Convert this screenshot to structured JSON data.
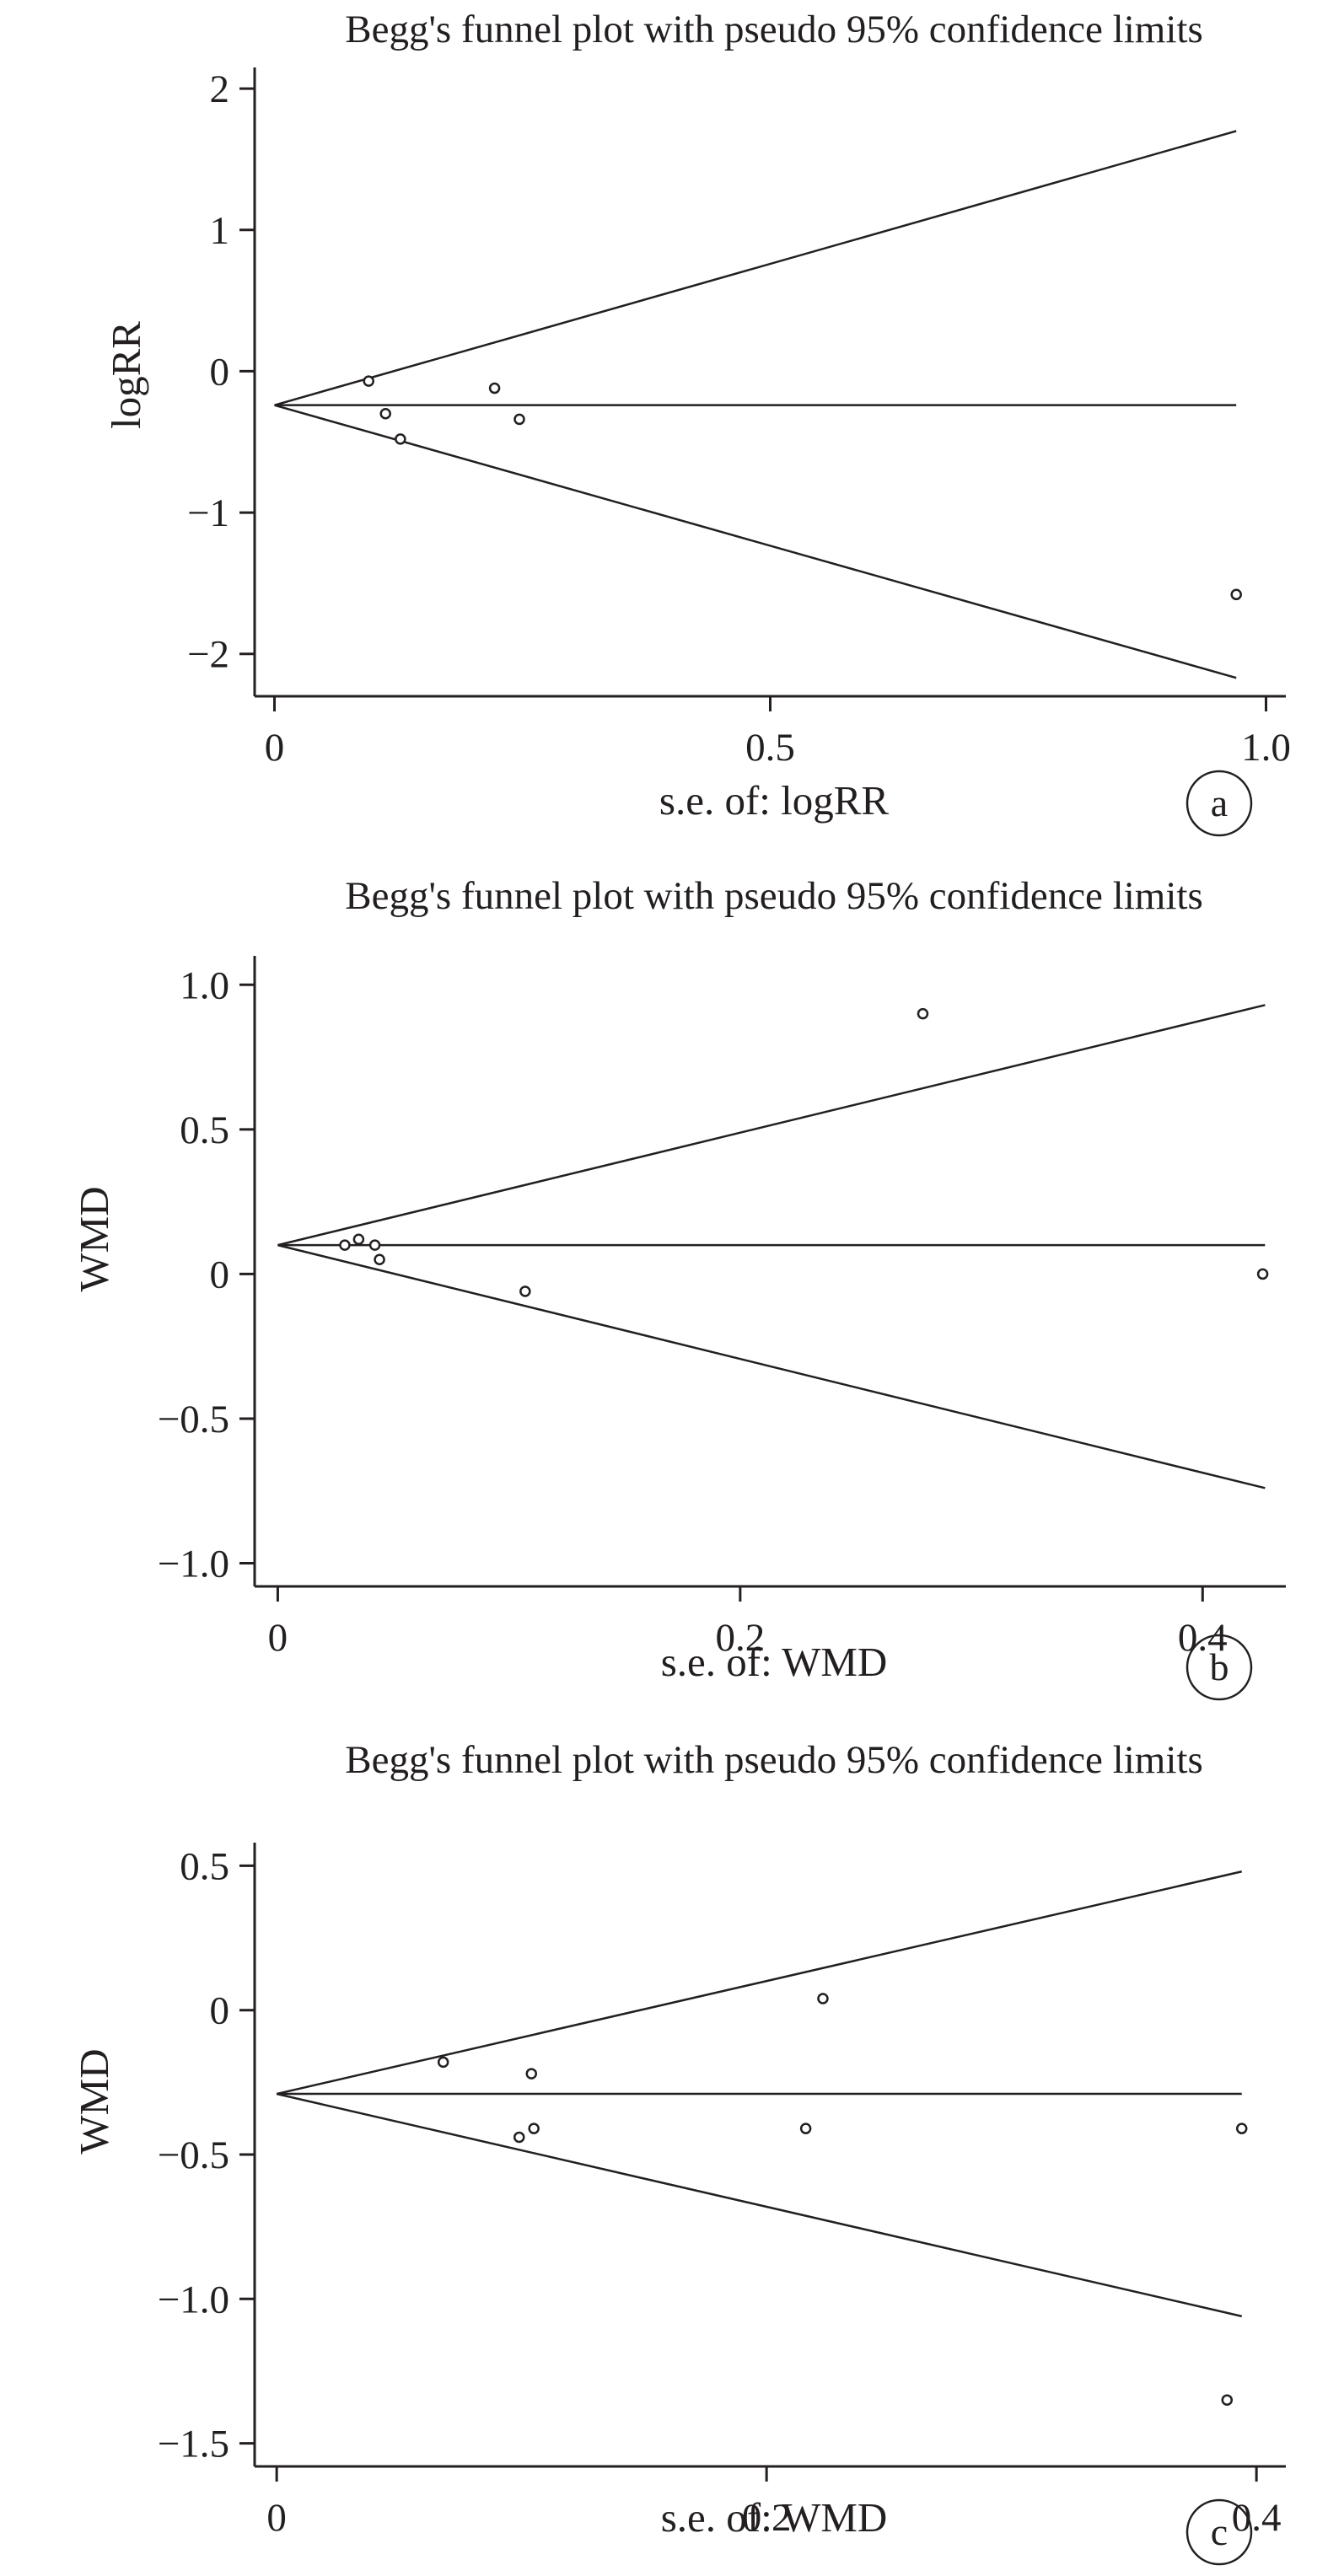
{
  "chart_data": [
    {
      "type": "scatter",
      "title": "Begg's funnel plot with pseudo 95% confidence limits",
      "xlabel": "s.e. of: logRR",
      "ylabel": "logRR",
      "panel_label": "a",
      "xlim": [
        -0.02,
        1.02
      ],
      "ylim": [
        -2.3,
        2.15
      ],
      "x_ticks": [
        0,
        0.5,
        1.0
      ],
      "x_tick_labels": [
        "0",
        "0.5",
        "1.0"
      ],
      "y_ticks": [
        2,
        1,
        0,
        -1,
        -2
      ],
      "y_tick_labels": [
        "2",
        "1",
        "0",
        "−1",
        "−2"
      ],
      "pooled_estimate": -0.24,
      "funnel": {
        "se_max": 0.97,
        "upper": 1.7,
        "lower": -2.17
      },
      "points": [
        {
          "x": 0.095,
          "y": -0.07
        },
        {
          "x": 0.112,
          "y": -0.3
        },
        {
          "x": 0.127,
          "y": -0.48
        },
        {
          "x": 0.222,
          "y": -0.12
        },
        {
          "x": 0.247,
          "y": -0.34
        },
        {
          "x": 0.97,
          "y": -1.58
        }
      ],
      "grid": false
    },
    {
      "type": "scatter",
      "title": "Begg's funnel plot with pseudo 95% confidence limits",
      "xlabel": "s.e. of: WMD",
      "ylabel": "WMD",
      "panel_label": "b",
      "xlim": [
        -0.01,
        0.436
      ],
      "ylim": [
        -1.08,
        1.1
      ],
      "x_ticks": [
        0,
        0.2,
        0.4
      ],
      "x_tick_labels": [
        "0",
        "0.2",
        "0.4"
      ],
      "y_ticks": [
        1.0,
        0.5,
        0,
        -0.5,
        -1.0
      ],
      "y_tick_labels": [
        "1.0",
        "0.5",
        "0",
        "−0.5",
        "−1.0"
      ],
      "pooled_estimate": 0.1,
      "funnel": {
        "se_max": 0.427,
        "upper": 0.93,
        "lower": -0.74
      },
      "points": [
        {
          "x": 0.029,
          "y": 0.1
        },
        {
          "x": 0.035,
          "y": 0.12
        },
        {
          "x": 0.042,
          "y": 0.1
        },
        {
          "x": 0.044,
          "y": 0.05
        },
        {
          "x": 0.107,
          "y": -0.06
        },
        {
          "x": 0.279,
          "y": 0.9
        },
        {
          "x": 0.426,
          "y": 0.0
        }
      ],
      "grid": false
    },
    {
      "type": "scatter",
      "title": "Begg's funnel plot with pseudo 95% confidence limits",
      "xlabel": "s.e. of: WMD",
      "ylabel": "WMD",
      "panel_label": "c",
      "xlim": [
        -0.009,
        0.412
      ],
      "ylim": [
        -1.58,
        0.58
      ],
      "x_ticks": [
        0,
        0.2,
        0.4
      ],
      "x_tick_labels": [
        "0",
        "0.2",
        "0.4"
      ],
      "y_ticks": [
        0.5,
        0,
        -0.5,
        -1.0,
        -1.5
      ],
      "y_tick_labels": [
        "0.5",
        "0",
        "−0.5",
        "−1.0",
        "−1.5"
      ],
      "pooled_estimate": -0.29,
      "funnel": {
        "se_max": 0.394,
        "upper": 0.48,
        "lower": -1.06
      },
      "points": [
        {
          "x": 0.068,
          "y": -0.18
        },
        {
          "x": 0.099,
          "y": -0.44
        },
        {
          "x": 0.104,
          "y": -0.22
        },
        {
          "x": 0.105,
          "y": -0.41
        },
        {
          "x": 0.216,
          "y": -0.41
        },
        {
          "x": 0.223,
          "y": 0.04
        },
        {
          "x": 0.388,
          "y": -1.35
        },
        {
          "x": 0.394,
          "y": -0.41
        }
      ],
      "grid": false
    }
  ]
}
